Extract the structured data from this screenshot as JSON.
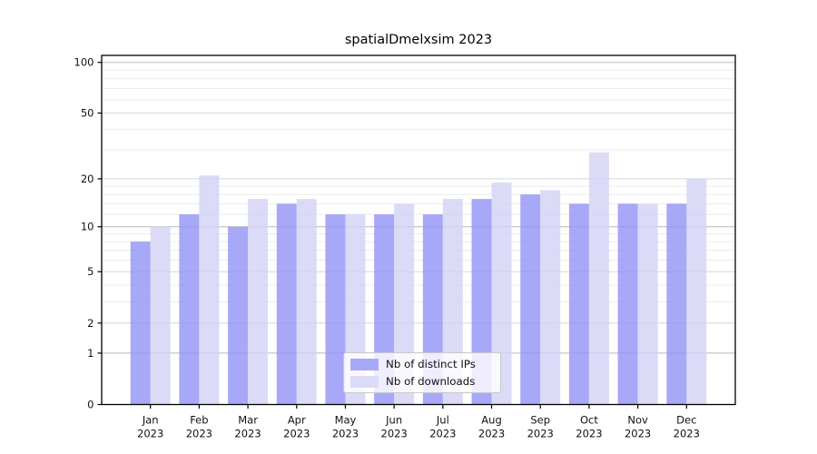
{
  "chart_data": {
    "type": "bar",
    "title": "spatialDmelxsim 2023",
    "categories": [
      "Jan",
      "Feb",
      "Mar",
      "Apr",
      "May",
      "Jun",
      "Jul",
      "Aug",
      "Sep",
      "Oct",
      "Nov",
      "Dec"
    ],
    "year_label": "2023",
    "series": [
      {
        "name": "Nb of distinct IPs",
        "color": "#a8a8f8",
        "values": [
          8,
          12,
          10,
          14,
          12,
          12,
          12,
          15,
          16,
          14,
          14,
          14
        ]
      },
      {
        "name": "Nb of downloads",
        "color": "#dbdbf8",
        "values": [
          10,
          21,
          15,
          15,
          12,
          14,
          15,
          19,
          17,
          29,
          14,
          20
        ]
      }
    ],
    "xlabel": "",
    "ylabel": "",
    "yscale": "log1p",
    "ylim": [
      0,
      110
    ],
    "yticks": [
      0,
      1,
      2,
      5,
      10,
      20,
      50,
      100
    ],
    "minor_yticks": [
      3,
      4,
      6,
      7,
      8,
      9,
      12,
      14,
      16,
      18,
      30,
      40,
      60,
      70,
      80,
      90
    ],
    "grid": "horizontal",
    "legend_position": "lower-center-inside"
  },
  "colors": {
    "background": "#ffffff",
    "axis": "#000000",
    "tick_text": "#111111",
    "major_grid_strong": "#b9b9b9",
    "major_grid": "#d7d7d7",
    "minor_grid": "#ececec"
  }
}
